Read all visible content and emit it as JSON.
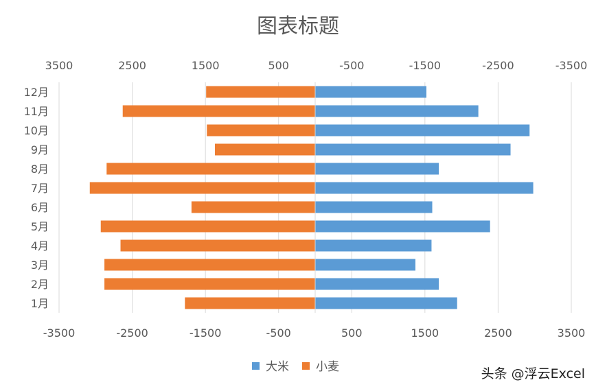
{
  "chart_data": {
    "type": "bar",
    "orientation": "horizontal",
    "title": "图表标题",
    "categories": [
      "1月",
      "2月",
      "3月",
      "4月",
      "5月",
      "6月",
      "7月",
      "8月",
      "9月",
      "10月",
      "11月",
      "12月"
    ],
    "series": [
      {
        "name": "大米",
        "values": [
          1940,
          1690,
          1370,
          1590,
          2390,
          1600,
          2980,
          1690,
          2670,
          2930,
          2230,
          1520
        ],
        "color": "#5B9BD5"
      },
      {
        "name": "小麦",
        "values": [
          -1780,
          -2880,
          -2880,
          -2660,
          -2930,
          -1690,
          -3080,
          -2850,
          -1370,
          -1480,
          -2630,
          -1490
        ],
        "color": "#ED7D31"
      }
    ],
    "xlim": [
      -3500,
      3500
    ],
    "x_ticks_bottom": [
      {
        "value": -3500,
        "label": "-3500"
      },
      {
        "value": -2500,
        "label": "-2500"
      },
      {
        "value": -1500,
        "label": "-1500"
      },
      {
        "value": -500,
        "label": "-500"
      },
      {
        "value": 500,
        "label": "500"
      },
      {
        "value": 1500,
        "label": "1500"
      },
      {
        "value": 2500,
        "label": "2500"
      },
      {
        "value": 3500,
        "label": "3500"
      }
    ],
    "x_ticks_top": [
      {
        "value": -3500,
        "label": "3500"
      },
      {
        "value": -2500,
        "label": "2500"
      },
      {
        "value": -1500,
        "label": "1500"
      },
      {
        "value": -500,
        "label": "500"
      },
      {
        "value": 500,
        "label": "-500"
      },
      {
        "value": 1500,
        "label": "-1500"
      },
      {
        "value": 2500,
        "label": "-2500"
      },
      {
        "value": 3500,
        "label": "-3500"
      }
    ],
    "grid": true,
    "legend": "bottom"
  },
  "watermark": "头条 @浮云Excel",
  "colors": {
    "gridline": "#D9D9D9",
    "text": "#595959"
  }
}
